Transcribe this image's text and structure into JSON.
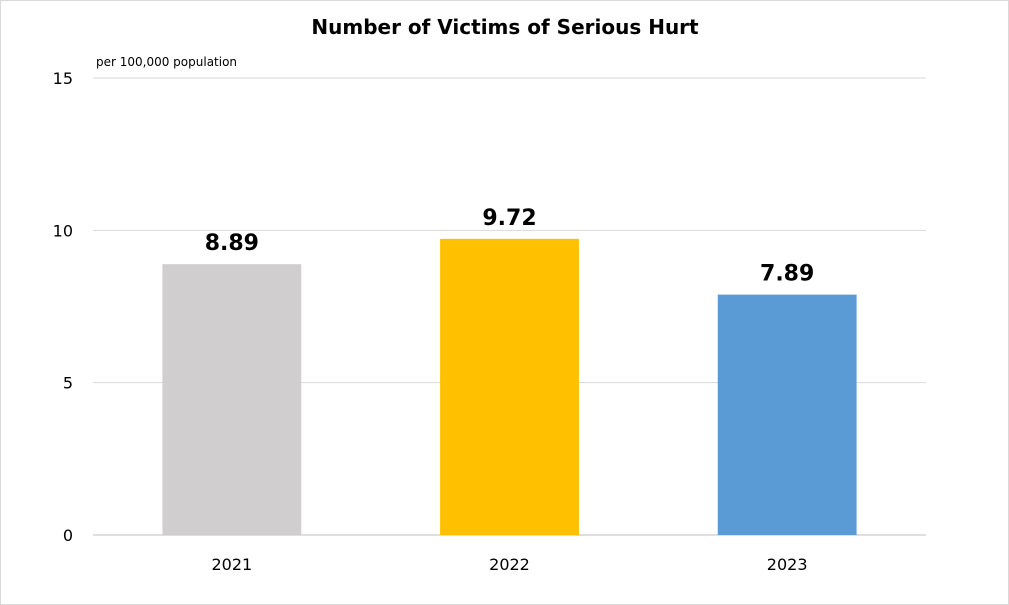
{
  "chart_data": {
    "type": "bar",
    "title": "Number of Victims of Serious Hurt",
    "unit_label": "per 100,000  population",
    "xlabel": "",
    "ylabel": "",
    "categories": [
      "2021",
      "2022",
      "2023"
    ],
    "values": [
      8.89,
      9.72,
      7.89
    ],
    "data_labels": [
      "8.89",
      "9.72",
      "7.89"
    ],
    "bar_colors": [
      "#d0cece",
      "#ffc000",
      "#5b9bd5"
    ],
    "ylim": [
      0,
      15
    ],
    "yticks": [
      0,
      5,
      10,
      15
    ],
    "ytick_labels": [
      "0",
      "5",
      "10",
      "15"
    ],
    "grid": true,
    "legend": "none"
  }
}
